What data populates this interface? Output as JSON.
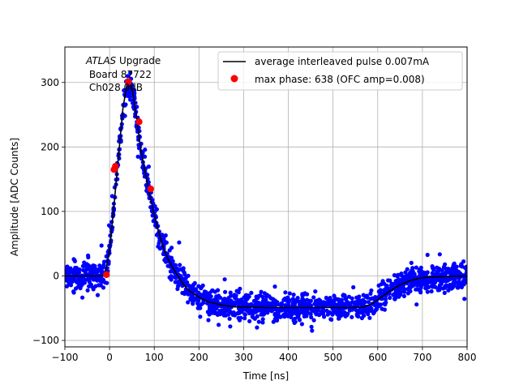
{
  "chart_data": {
    "type": "scatter",
    "title": "",
    "xlabel": "Time [ns]",
    "ylabel": "Amplitude [ADC Counts]",
    "xlim": [
      -100,
      800
    ],
    "ylim": [
      -110,
      355
    ],
    "grid": true,
    "legend_position": "top-right",
    "x_ticks": [
      -100,
      0,
      100,
      200,
      300,
      400,
      500,
      600,
      700,
      800
    ],
    "x_tick_labels": [
      "−100",
      "0",
      "100",
      "200",
      "300",
      "400",
      "500",
      "600",
      "700",
      "800"
    ],
    "y_ticks": [
      -100,
      0,
      100,
      200,
      300
    ],
    "y_tick_labels": [
      "−100",
      "0",
      "100",
      "200",
      "300"
    ],
    "annotation": {
      "line1_italic": "ATLAS",
      "line1_rest": " Upgrade",
      "line2": " Board 87722",
      "line3": " Ch028 0dB"
    },
    "series": [
      {
        "name": "average interleaved pulse 0.007mA",
        "role": "line",
        "color": "#000000",
        "x": [
          -100,
          -20,
          -10,
          0,
          10,
          20,
          30,
          40,
          50,
          60,
          70,
          80,
          90,
          100,
          110,
          120,
          130,
          140,
          150,
          160,
          170,
          180,
          200,
          220,
          250,
          280,
          300,
          350,
          400,
          450,
          500,
          550,
          570,
          590,
          610,
          630,
          650,
          670,
          690,
          710,
          750,
          800
        ],
        "y": [
          0,
          0,
          3,
          40,
          110,
          185,
          260,
          302,
          292,
          248,
          195,
          160,
          125,
          95,
          68,
          45,
          27,
          14,
          3,
          -8,
          -17,
          -24,
          -33,
          -40,
          -45,
          -48,
          -48,
          -49,
          -49,
          -49,
          -49,
          -49,
          -48,
          -42,
          -32,
          -22,
          -14,
          -8,
          -4,
          -2,
          -1,
          0
        ]
      },
      {
        "name": "",
        "role": "scatter-band",
        "color": "#0000ff",
        "spread": 18
      },
      {
        "name": "max phase: 638 (OFC amp=0.008)",
        "role": "points",
        "color": "#ff0000",
        "x": [
          -7,
          10,
          13,
          42,
          66,
          92
        ],
        "y": [
          2,
          165,
          170,
          301,
          239,
          135
        ]
      }
    ]
  }
}
